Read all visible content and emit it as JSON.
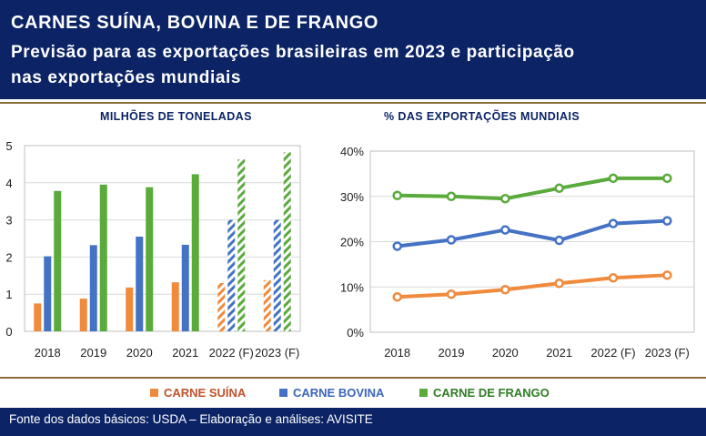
{
  "header": {
    "title": "CARNES SUÍNA, BOVINA E DE FRANGO",
    "subtitle": "Previsão para as exportações brasileiras em 2023 e participação nas exportações mundiais"
  },
  "colors": {
    "header_bg": "#0c2466",
    "suina": "#f08a3c",
    "bovina": "#4472c4",
    "frango": "#5aaa3c",
    "rule": "#8a6d3b"
  },
  "legend": {
    "items": [
      {
        "label": "CARNE SUÍNA",
        "color": "#f08a3c",
        "text_color": "#c0522a"
      },
      {
        "label": "CARNE BOVINA",
        "color": "#4472c4",
        "text_color": "#3a66b8"
      },
      {
        "label": "CARNE DE FRANGO",
        "color": "#5aaa3c",
        "text_color": "#2e7d22"
      }
    ]
  },
  "footer": {
    "text": "Fonte dos dados básicos: USDA – Elaboração e análises: AVISITE"
  },
  "chart_data": [
    {
      "type": "bar",
      "title": "MILHÕES DE TONELADAS",
      "categories": [
        "2018",
        "2019",
        "2020",
        "2021",
        "2022 (F)",
        "2023 (F)"
      ],
      "forecast_categories": [
        "2022 (F)",
        "2023 (F)"
      ],
      "series": [
        {
          "name": "CARNE SUÍNA",
          "values": [
            0.75,
            0.88,
            1.18,
            1.32,
            1.3,
            1.38
          ]
        },
        {
          "name": "CARNE BOVINA",
          "values": [
            2.02,
            2.32,
            2.55,
            2.33,
            3.0,
            3.0
          ]
        },
        {
          "name": "CARNE DE FRANGO",
          "values": [
            3.78,
            3.95,
            3.88,
            4.23,
            4.63,
            4.82
          ]
        }
      ],
      "yticks": [
        "0",
        "1",
        "2",
        "3",
        "4",
        "5"
      ],
      "ylim": [
        0,
        5
      ],
      "grid": true
    },
    {
      "type": "line",
      "title": "% DAS EXPORTAÇÕES MUNDIAIS",
      "categories": [
        "2018",
        "2019",
        "2020",
        "2021",
        "2022 (F)",
        "2023 (F)"
      ],
      "series": [
        {
          "name": "CARNE SUÍNA",
          "values": [
            7.8,
            8.4,
            9.4,
            10.8,
            12.0,
            12.6
          ]
        },
        {
          "name": "CARNE BOVINA",
          "values": [
            19.0,
            20.4,
            22.6,
            20.3,
            24.0,
            24.6
          ]
        },
        {
          "name": "CARNE DE FRANGO",
          "values": [
            30.2,
            30.0,
            29.5,
            31.8,
            34.0,
            34.0
          ]
        }
      ],
      "yticks": [
        "0%",
        "10%",
        "20%",
        "30%",
        "40%"
      ],
      "ylim": [
        0,
        40
      ],
      "grid": true
    }
  ]
}
